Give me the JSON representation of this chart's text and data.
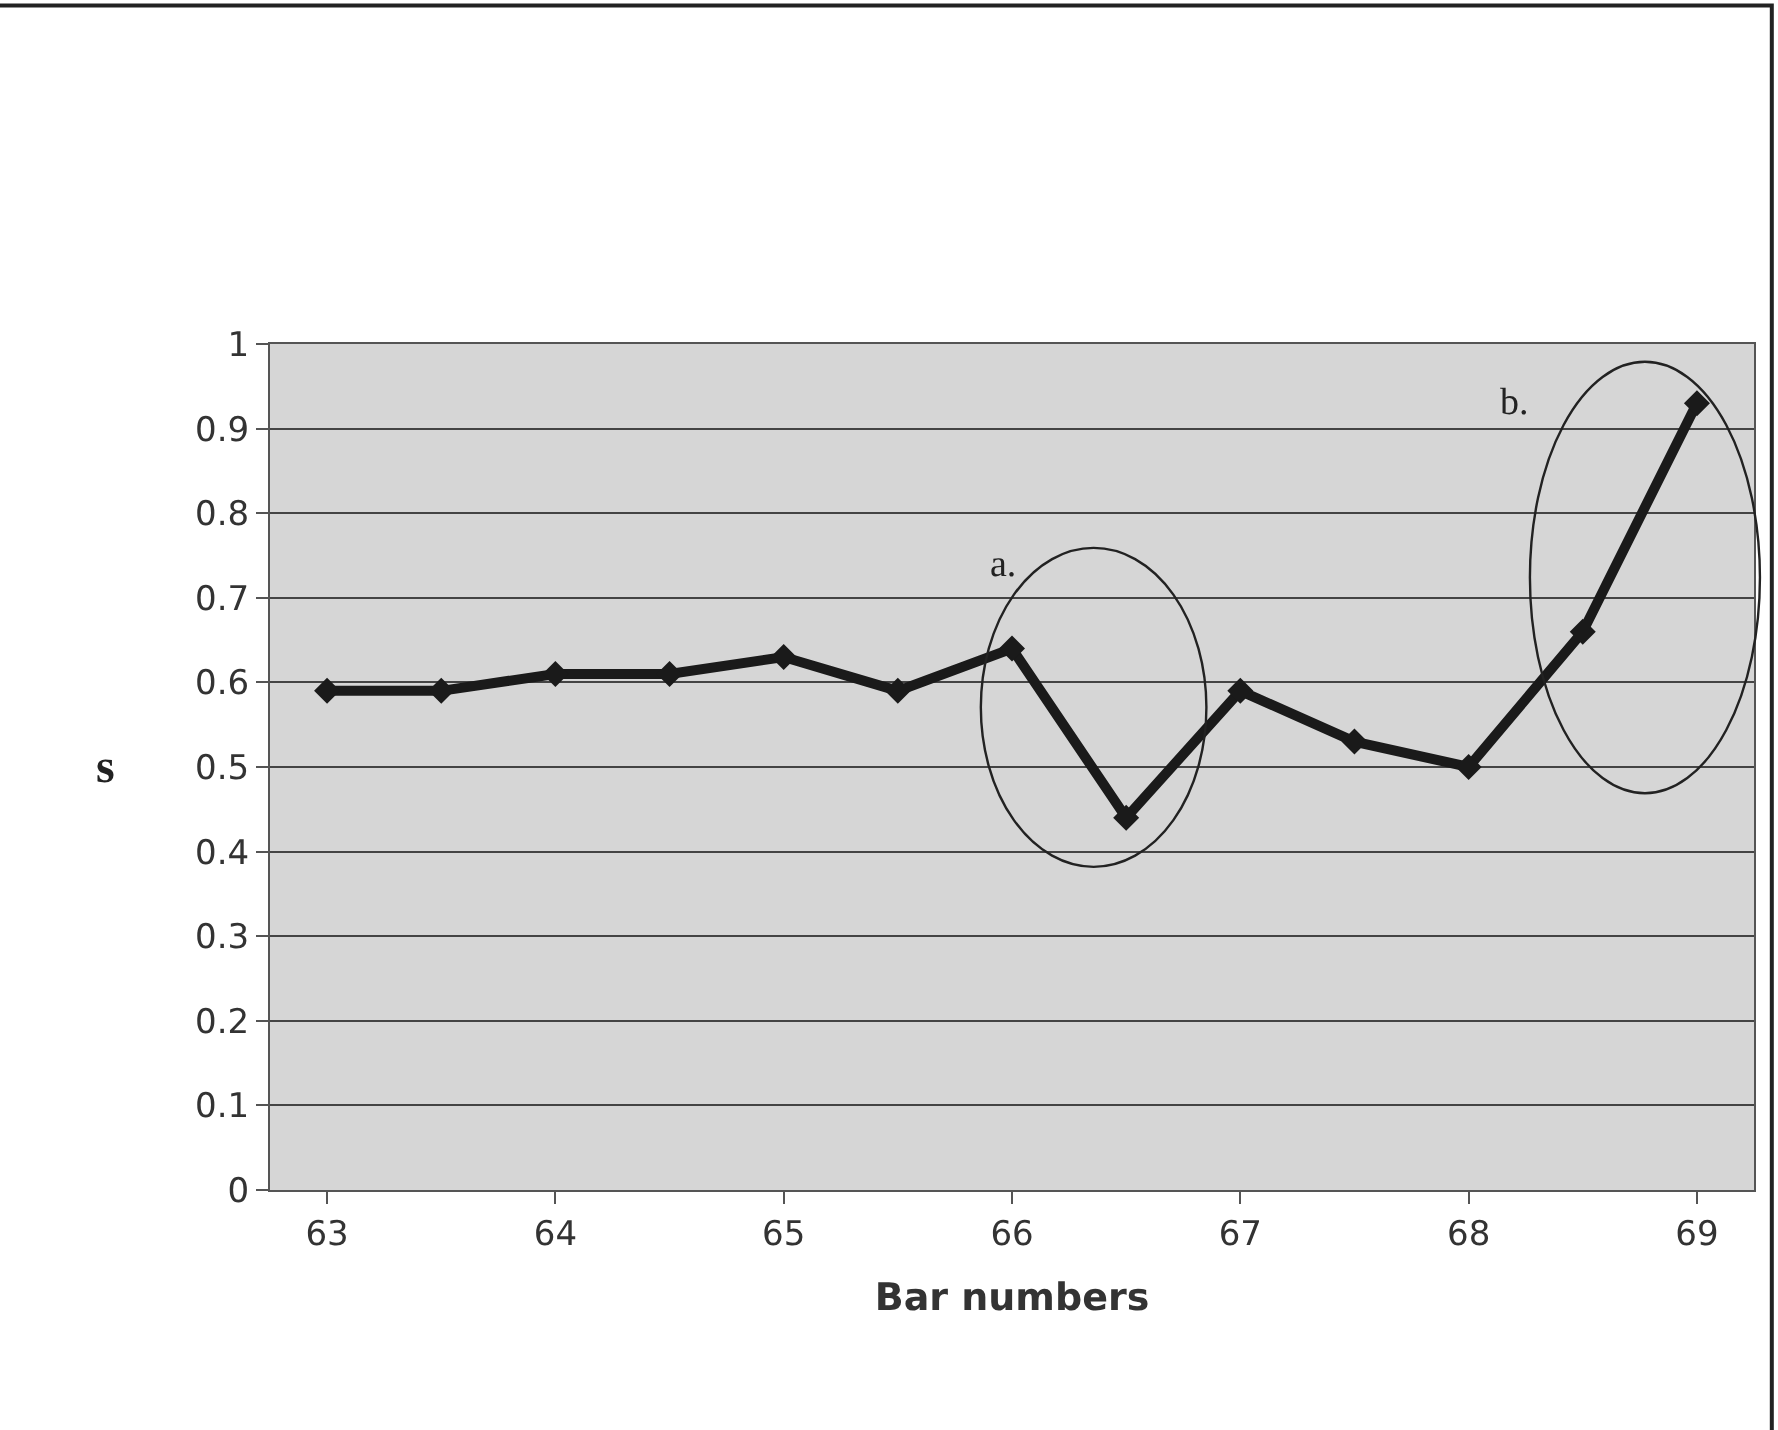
{
  "chart_data": {
    "type": "line",
    "xlabel": "Bar numbers",
    "ylabel": "s",
    "x": [
      63,
      63.5,
      64,
      64.5,
      65,
      65.5,
      66,
      66.5,
      67,
      67.5,
      68,
      68.5,
      69
    ],
    "series": [
      {
        "color": "#1a1a1a",
        "values": [
          0.59,
          0.59,
          0.61,
          0.61,
          0.63,
          0.59,
          0.64,
          0.44,
          0.59,
          0.53,
          0.5,
          0.66,
          0.93
        ]
      }
    ],
    "xlim": [
      62.75,
      69.25
    ],
    "xticks": [
      63,
      64,
      65,
      66,
      67,
      68,
      69
    ],
    "ylim": [
      0,
      1
    ],
    "yticks": [
      0,
      0.1,
      0.2,
      0.3,
      0.4,
      0.5,
      0.6,
      0.7,
      0.8,
      0.9,
      1
    ],
    "grid": "y",
    "marker": "diamond",
    "line_style": "solid",
    "annotations": [
      "a.",
      "b."
    ]
  }
}
